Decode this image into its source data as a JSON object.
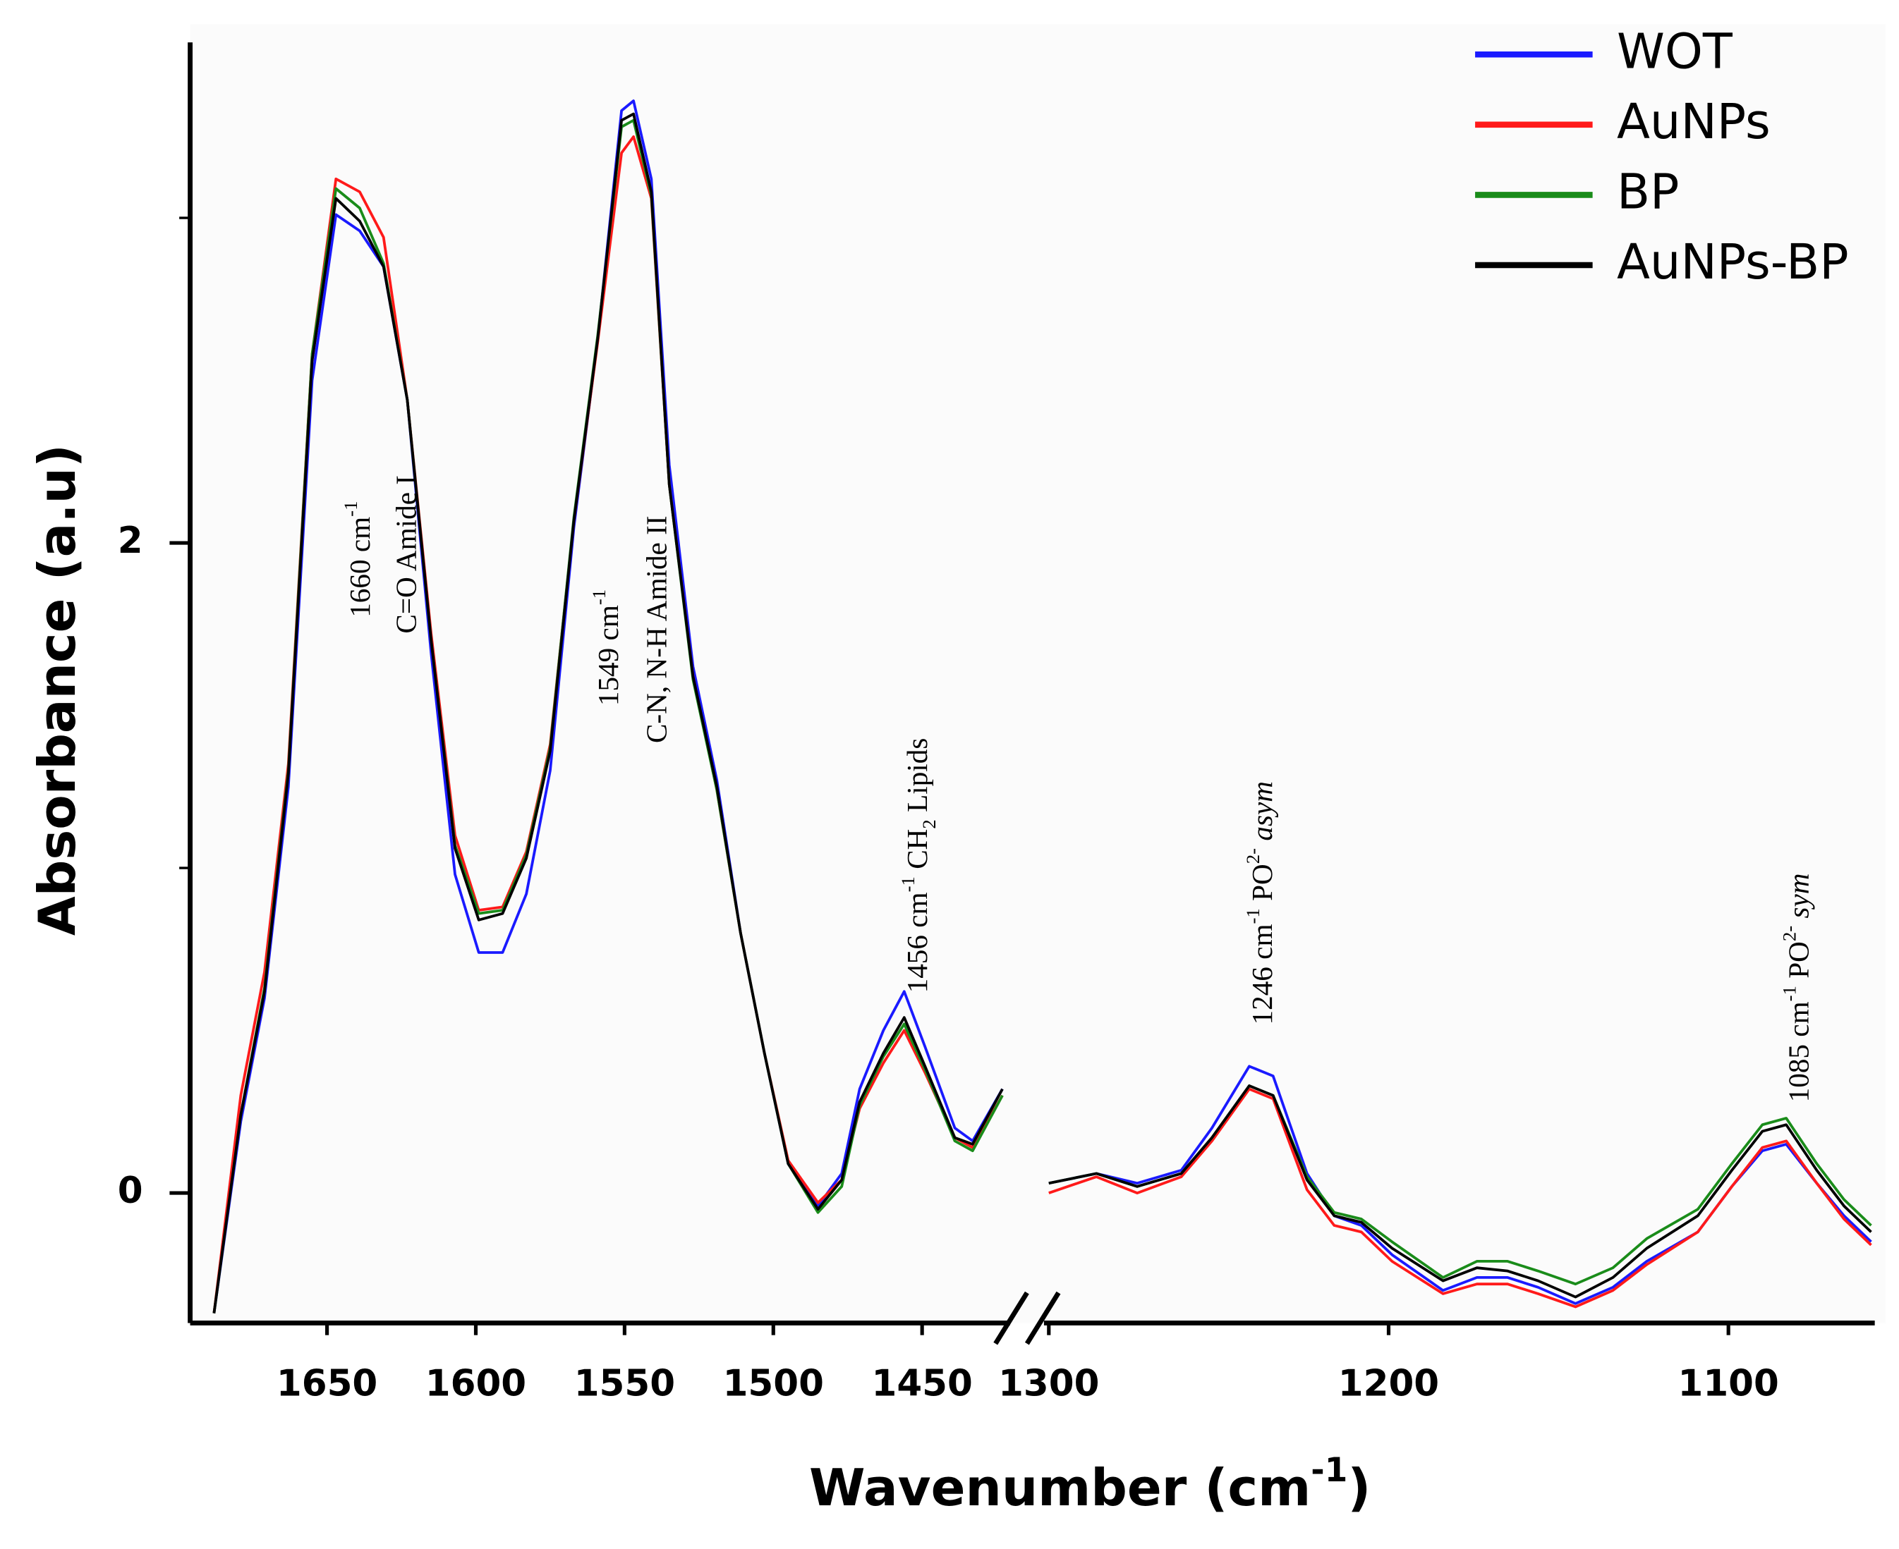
{
  "chart_data": {
    "type": "line",
    "ylabel": "Absorbance (a.u)",
    "xlabel": [
      {
        "text": "Wavenumber (cm"
      },
      {
        "text": "-1",
        "style": "sup"
      },
      {
        "text": ")"
      }
    ],
    "ylim": [
      -0.4,
      3.54
    ],
    "yticks": [
      0,
      2
    ],
    "yminor_ticks": [
      1,
      3
    ],
    "legend_position": "top-right",
    "series": [
      {
        "name": "WOT",
        "color": "#1a1aff"
      },
      {
        "name": "AuNPs",
        "color": "#ff1a1a"
      },
      {
        "name": "BP",
        "color": "#1a8c1a"
      },
      {
        "name": "AuNPs-BP",
        "color": "#000000"
      }
    ],
    "panels": [
      {
        "xlim": [
          1696,
          1418
        ],
        "xticks": [
          1650,
          1600,
          1550,
          1500,
          1450
        ],
        "x": [
          1688,
          1679,
          1671,
          1663,
          1655,
          1647,
          1639,
          1631,
          1623,
          1615,
          1607,
          1599,
          1591,
          1583,
          1575,
          1567,
          1559,
          1551,
          1547,
          1541,
          1535,
          1527,
          1519,
          1511,
          1503,
          1495,
          1485,
          1477,
          1471,
          1463,
          1456,
          1449,
          1439,
          1433,
          1423
        ],
        "series": [
          {
            "values": [
              -0.37,
              0.22,
              0.6,
              1.25,
              2.5,
              3.01,
              2.96,
              2.85,
              2.44,
              1.66,
              0.98,
              0.74,
              0.74,
              0.92,
              1.3,
              2.05,
              2.63,
              3.33,
              3.36,
              3.12,
              2.24,
              1.62,
              1.27,
              0.8,
              0.43,
              0.09,
              -0.04,
              0.06,
              0.32,
              0.5,
              0.62,
              0.45,
              0.2,
              0.16,
              0.32
            ]
          },
          {
            "values": [
              -0.37,
              0.3,
              0.68,
              1.32,
              2.58,
              3.12,
              3.08,
              2.94,
              2.44,
              1.72,
              1.1,
              0.87,
              0.88,
              1.05,
              1.38,
              2.07,
              2.62,
              3.2,
              3.25,
              3.06,
              2.18,
              1.59,
              1.24,
              0.8,
              0.43,
              0.1,
              -0.03,
              0.04,
              0.26,
              0.4,
              0.5,
              0.37,
              0.17,
              0.14,
              0.3
            ]
          },
          {
            "values": [
              -0.37,
              0.24,
              0.63,
              1.3,
              2.58,
              3.09,
              3.03,
              2.86,
              2.44,
              1.7,
              1.07,
              0.86,
              0.87,
              1.04,
              1.37,
              2.08,
              2.64,
              3.28,
              3.3,
              3.07,
              2.18,
              1.58,
              1.24,
              0.8,
              0.43,
              0.09,
              -0.06,
              0.02,
              0.27,
              0.42,
              0.52,
              0.38,
              0.16,
              0.13,
              0.3
            ]
          },
          {
            "values": [
              -0.37,
              0.24,
              0.62,
              1.29,
              2.56,
              3.06,
              2.99,
              2.85,
              2.44,
              1.7,
              1.06,
              0.84,
              0.86,
              1.03,
              1.36,
              2.07,
              2.63,
              3.3,
              3.32,
              3.08,
              2.18,
              1.59,
              1.25,
              0.8,
              0.43,
              0.09,
              -0.05,
              0.04,
              0.28,
              0.43,
              0.54,
              0.39,
              0.17,
              0.15,
              0.32
            ]
          }
        ]
      },
      {
        "xlim": [
          1300,
          1058
        ],
        "xticks": [
          1300,
          1200,
          1100
        ],
        "x": [
          1300,
          1286,
          1274,
          1261,
          1252,
          1241,
          1234,
          1224,
          1216,
          1208,
          1199,
          1184,
          1174,
          1165,
          1156,
          1145,
          1134,
          1124,
          1109,
          1099,
          1090,
          1083,
          1074,
          1066,
          1058
        ],
        "series": [
          {
            "values": [
              0.03,
              0.06,
              0.03,
              0.07,
              0.2,
              0.39,
              0.36,
              0.06,
              -0.07,
              -0.1,
              -0.19,
              -0.3,
              -0.26,
              -0.26,
              -0.29,
              -0.34,
              -0.29,
              -0.21,
              -0.12,
              0.02,
              0.13,
              0.15,
              0.03,
              -0.07,
              -0.15
            ]
          },
          {
            "values": [
              0.0,
              0.05,
              0.0,
              0.05,
              0.16,
              0.32,
              0.29,
              0.01,
              -0.1,
              -0.12,
              -0.21,
              -0.31,
              -0.28,
              -0.28,
              -0.31,
              -0.35,
              -0.3,
              -0.22,
              -0.12,
              0.02,
              0.14,
              0.16,
              0.03,
              -0.08,
              -0.16
            ]
          },
          {
            "values": [
              0.03,
              0.06,
              0.02,
              0.06,
              0.17,
              0.33,
              0.3,
              0.05,
              -0.06,
              -0.08,
              -0.15,
              -0.26,
              -0.21,
              -0.21,
              -0.24,
              -0.28,
              -0.23,
              -0.14,
              -0.05,
              0.09,
              0.21,
              0.23,
              0.09,
              -0.02,
              -0.1
            ]
          },
          {
            "values": [
              0.03,
              0.06,
              0.02,
              0.06,
              0.17,
              0.33,
              0.3,
              0.04,
              -0.07,
              -0.09,
              -0.17,
              -0.27,
              -0.23,
              -0.24,
              -0.27,
              -0.32,
              -0.26,
              -0.17,
              -0.07,
              0.07,
              0.19,
              0.21,
              0.07,
              -0.04,
              -0.12
            ]
          }
        ]
      }
    ],
    "annotations": [
      {
        "lines": [
          [
            {
              "text": "1660 cm"
            },
            {
              "text": "-1",
              "style": "sup"
            }
          ],
          [
            {
              "text": "C=O Amide I"
            }
          ]
        ]
      },
      {
        "lines": [
          [
            {
              "text": "1549 cm"
            },
            {
              "text": "-1",
              "style": "sup"
            }
          ],
          [
            {
              "text": "C-N, N-H Amide II"
            }
          ]
        ]
      },
      {
        "lines": [
          [
            {
              "text": "1456 cm"
            },
            {
              "text": "-1",
              "style": "sup"
            },
            {
              "text": " CH"
            },
            {
              "text": "2",
              "style": "sub"
            },
            {
              "text": " Lipids"
            }
          ]
        ]
      },
      {
        "lines": [
          [
            {
              "text": "1246 cm"
            },
            {
              "text": "-1",
              "style": "sup"
            },
            {
              "text": " PO"
            },
            {
              "text": "2-",
              "style": "sup"
            },
            {
              "text": " asym",
              "style": "italic"
            }
          ]
        ]
      },
      {
        "lines": [
          [
            {
              "text": "1085 cm"
            },
            {
              "text": "-1",
              "style": "sup"
            },
            {
              "text": " PO"
            },
            {
              "text": "2-",
              "style": "sup"
            },
            {
              "text": " sym",
              "style": "italic"
            }
          ]
        ]
      }
    ]
  }
}
